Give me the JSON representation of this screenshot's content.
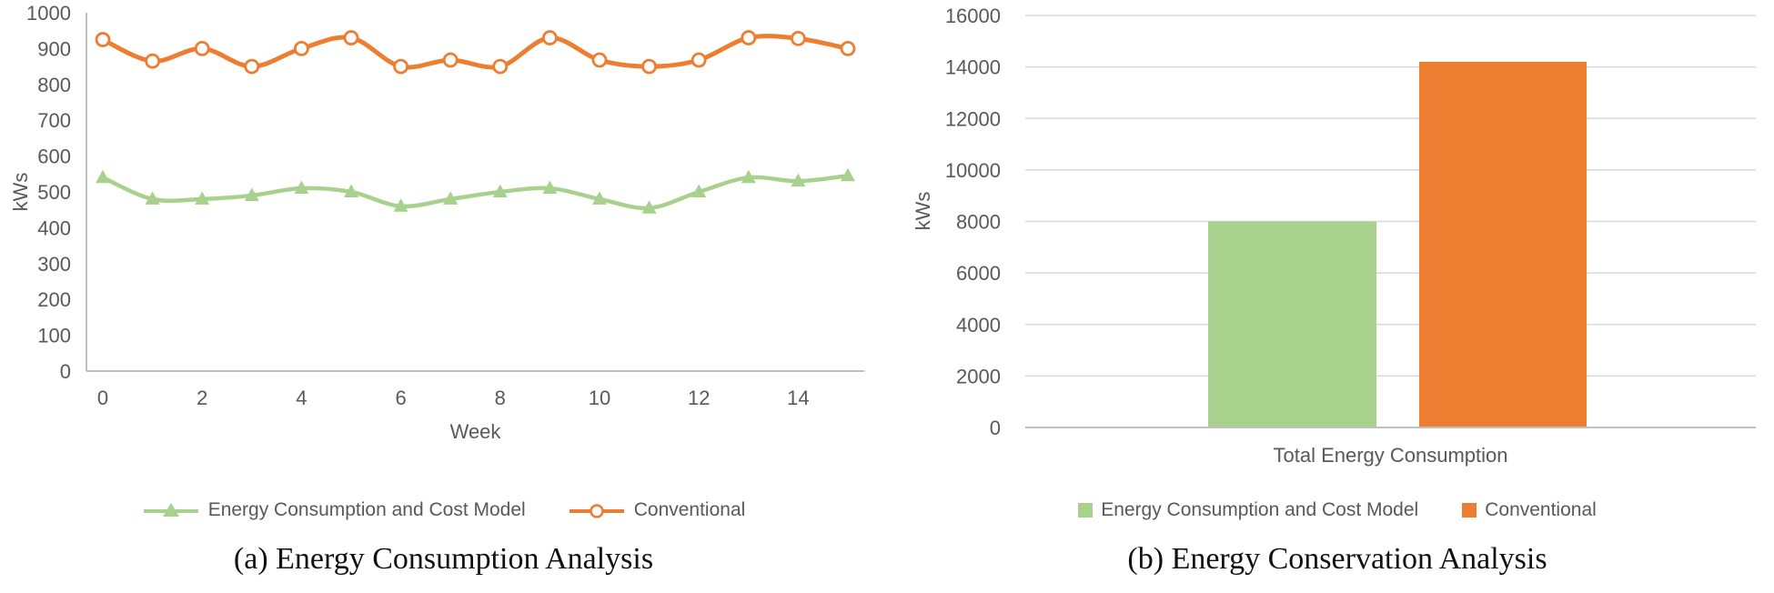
{
  "colors": {
    "green": "#A9D18E",
    "orange": "#ED7D31",
    "axis": "#BFBFBF",
    "grid": "#D9D9D9",
    "text": "#595959"
  },
  "chart_data": [
    {
      "id": "energy-consumption-line-chart",
      "type": "line",
      "caption": "(a) Energy Consumption Analysis",
      "xlabel": "Week",
      "ylabel": "kWs",
      "x": [
        0,
        1,
        2,
        3,
        4,
        5,
        6,
        7,
        8,
        9,
        10,
        11,
        12,
        13,
        14,
        15
      ],
      "x_ticks": [
        0,
        2,
        4,
        6,
        8,
        10,
        12,
        14
      ],
      "ylim": [
        0,
        1000
      ],
      "y_ticks": [
        0,
        100,
        200,
        300,
        400,
        500,
        600,
        700,
        800,
        900,
        1000
      ],
      "grid": "off",
      "legend_position": "bottom",
      "series": [
        {
          "name": "Energy Consumption and Cost Model",
          "color_key": "green",
          "marker": "triangle",
          "values": [
            540,
            480,
            480,
            490,
            510,
            500,
            460,
            480,
            500,
            510,
            480,
            455,
            500,
            540,
            530,
            545
          ]
        },
        {
          "name": "Conventional",
          "color_key": "orange",
          "marker": "circle",
          "values": [
            925,
            865,
            900,
            850,
            900,
            930,
            850,
            868,
            850,
            930,
            868,
            850,
            868,
            930,
            928,
            900
          ]
        }
      ]
    },
    {
      "id": "energy-conservation-bar-chart",
      "type": "bar",
      "caption": "(b) Energy Conservation Analysis",
      "xlabel": "",
      "ylabel": "kWs",
      "categories": [
        "Total Energy Consumption"
      ],
      "ylim": [
        0,
        16000
      ],
      "y_ticks": [
        0,
        2000,
        4000,
        6000,
        8000,
        10000,
        12000,
        14000,
        16000
      ],
      "grid": "on",
      "legend_position": "bottom",
      "series": [
        {
          "name": "Energy Consumption and Cost Model",
          "color_key": "green",
          "values": [
            8000
          ]
        },
        {
          "name": "Conventional",
          "color_key": "orange",
          "values": [
            14200
          ]
        }
      ]
    }
  ]
}
